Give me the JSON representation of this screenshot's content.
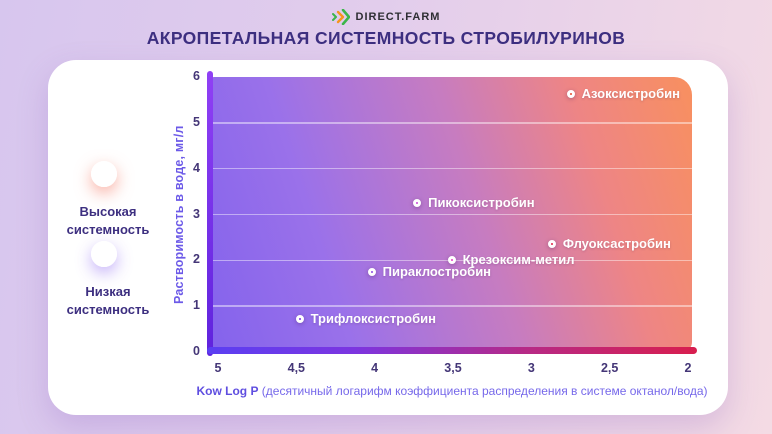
{
  "logo": {
    "text": "DIRECT.FARM",
    "icon": "triple-chevron-icon",
    "icon_colors": {
      "green": "#3CB54A",
      "orange": "#F7941D"
    }
  },
  "title": "АКРОПЕТАЛЬНАЯ СИСТЕМНОСТЬ СТРОБИЛУРИНОВ",
  "legend": {
    "high": {
      "label": "Высокая системность",
      "color": "#F4705A"
    },
    "low": {
      "label": "Низкая системность",
      "color": "#7A4DF0"
    }
  },
  "chart_data": {
    "type": "scatter",
    "title": "АКРОПЕТАЛЬНАЯ СИСТЕМНОСТЬ СТРОБИЛУРИНОВ",
    "ylabel": "Растворимость в воде, мг/л",
    "xlabel_bold": "Kow Log P",
    "xlabel_rest": " (десятичный логарифм коэффициента распределения в системе октанол/вода)",
    "xlim": [
      5,
      2
    ],
    "ylim": [
      0,
      6
    ],
    "x_axis_reversed": true,
    "grid": "horizontal",
    "x_ticks": [
      {
        "value": 5,
        "label": "5"
      },
      {
        "value": 4.5,
        "label": "4,5"
      },
      {
        "value": 4,
        "label": "4"
      },
      {
        "value": 3.5,
        "label": "3,5"
      },
      {
        "value": 3,
        "label": "3"
      },
      {
        "value": 2.5,
        "label": "2,5"
      },
      {
        "value": 2,
        "label": "2"
      }
    ],
    "y_ticks": [
      {
        "value": 0,
        "label": "0"
      },
      {
        "value": 1,
        "label": "1"
      },
      {
        "value": 2,
        "label": "2"
      },
      {
        "value": 3,
        "label": "3"
      },
      {
        "value": 4,
        "label": "4"
      },
      {
        "value": 5,
        "label": "5"
      },
      {
        "value": 6,
        "label": "6"
      }
    ],
    "points": [
      {
        "name": "Азоксистробин",
        "x": 2.73,
        "y": 5.62,
        "color": "#E6492D"
      },
      {
        "name": "Пикоксистробин",
        "x": 3.71,
        "y": 3.25,
        "color": "#C943D6"
      },
      {
        "name": "Флуоксастробин",
        "x": 2.85,
        "y": 2.35,
        "color": "#DE2145"
      },
      {
        "name": "Крезоксим-метил",
        "x": 3.49,
        "y": 2.0,
        "color": "#E838C6"
      },
      {
        "name": "Пираклостробин",
        "x": 4.0,
        "y": 1.75,
        "color": "#8D47E4"
      },
      {
        "name": "Трифлоксистробин",
        "x": 4.46,
        "y": 0.72,
        "color": "#7A2FE2"
      }
    ]
  }
}
